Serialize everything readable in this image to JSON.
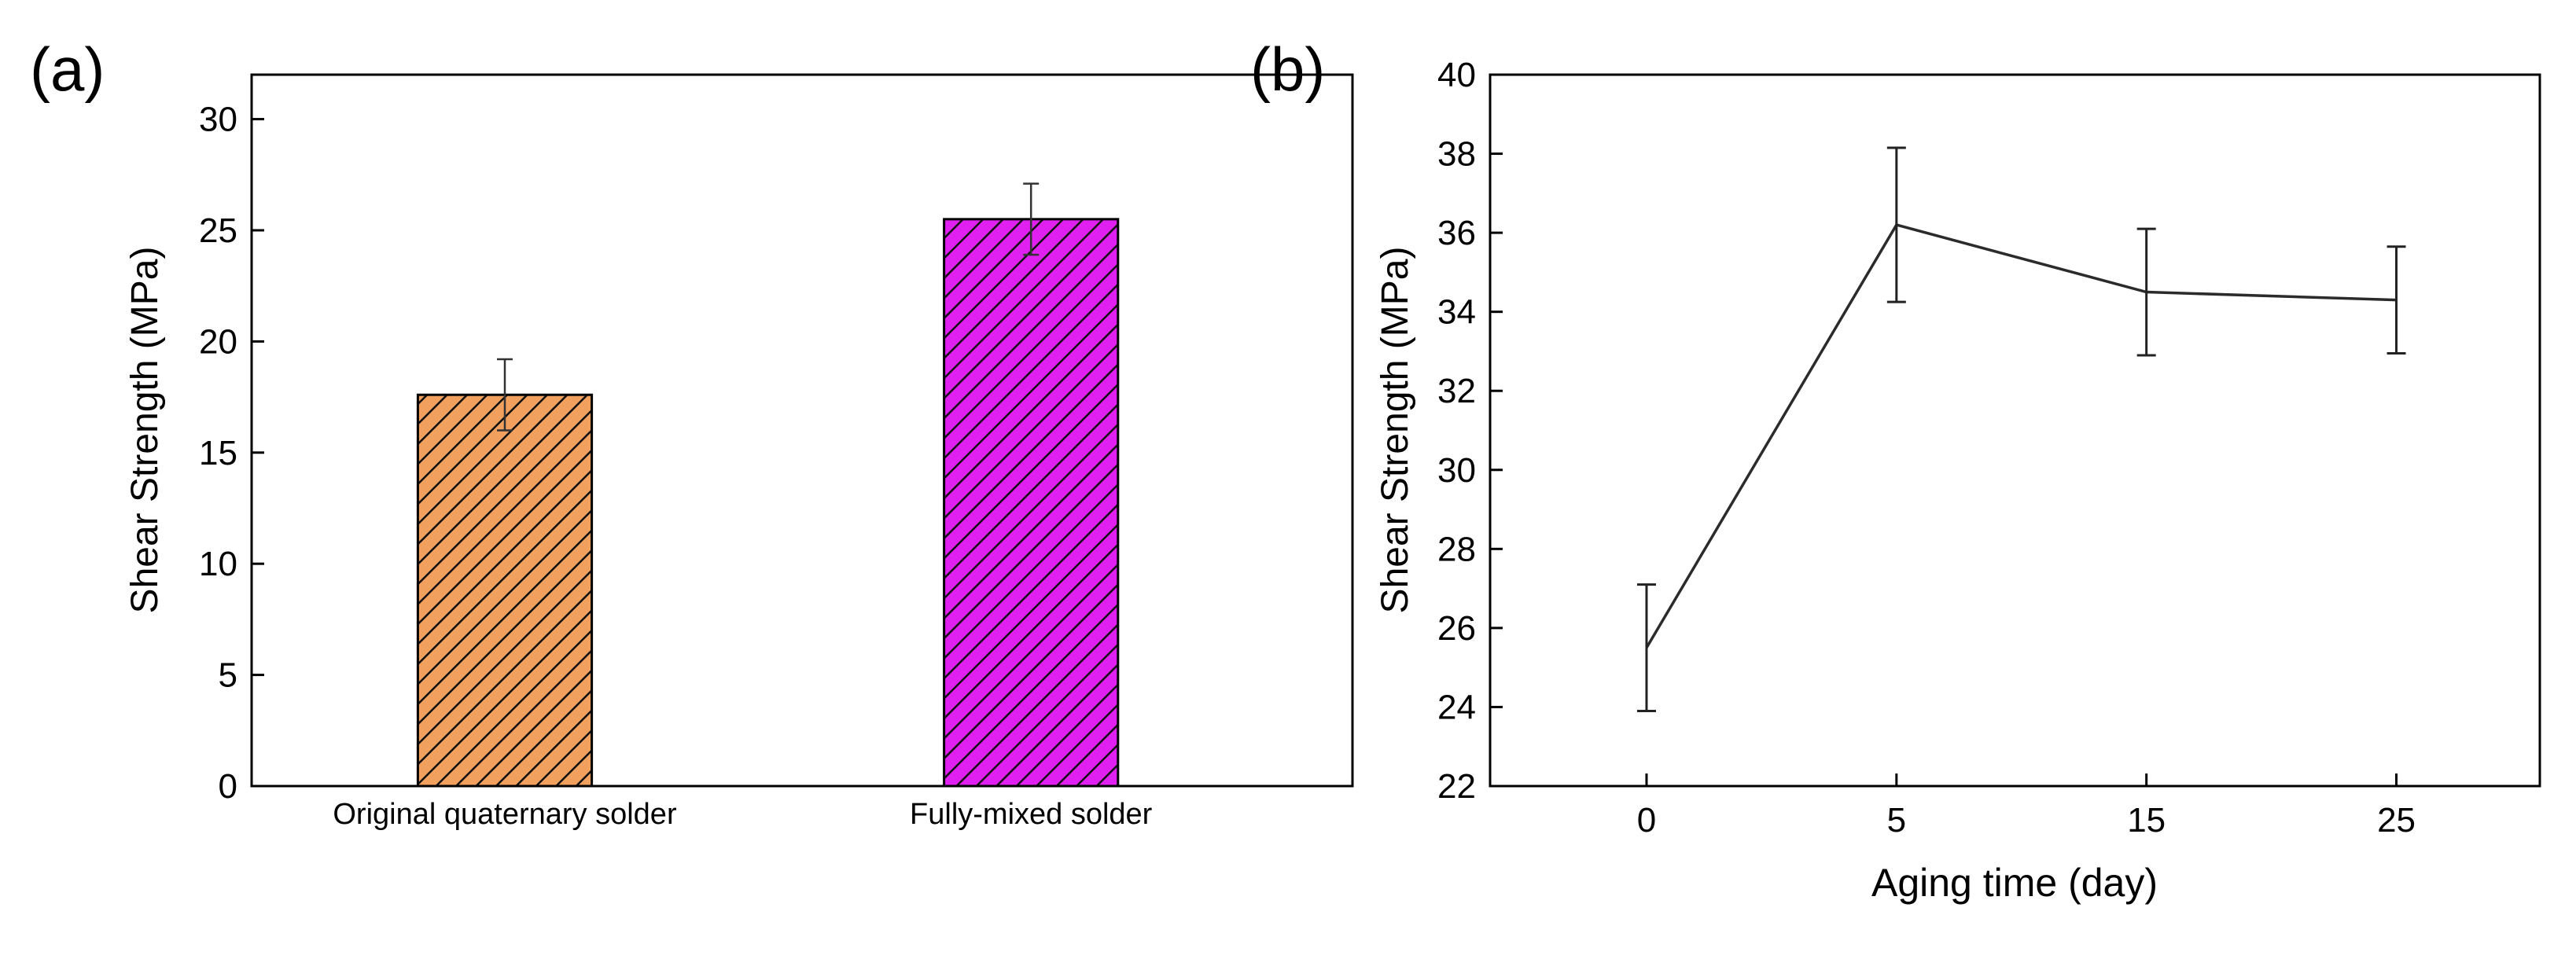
{
  "chart_data": [
    {
      "panel": "(a)",
      "type": "bar",
      "categories": [
        "Original quaternary solder",
        "Fully-mixed solder"
      ],
      "values": [
        17.6,
        25.5
      ],
      "errors": [
        1.6,
        1.6
      ],
      "colors": [
        "#f2a05e",
        "#e020f0"
      ],
      "hatch": "diagonal",
      "title": "",
      "xlabel": "",
      "ylabel": "Shear Strength (MPa)",
      "ylim": [
        0,
        32
      ],
      "yticks": [
        0,
        5,
        10,
        15,
        20,
        25,
        30
      ],
      "grid": false,
      "legend": "none"
    },
    {
      "panel": "(b)",
      "type": "line",
      "x": [
        "0",
        "5",
        "15",
        "25"
      ],
      "y": [
        25.5,
        36.2,
        34.5,
        34.3
      ],
      "errors": [
        1.6,
        1.95,
        1.6,
        1.35
      ],
      "title": "",
      "xlabel": "Aging time (day)",
      "ylabel": "Shear Strength (MPa)",
      "ylim": [
        22,
        40
      ],
      "yticks": [
        22,
        24,
        26,
        28,
        30,
        32,
        34,
        36,
        38,
        40
      ],
      "line_color": "#2b2b2b",
      "grid": false,
      "legend": "none"
    }
  ]
}
